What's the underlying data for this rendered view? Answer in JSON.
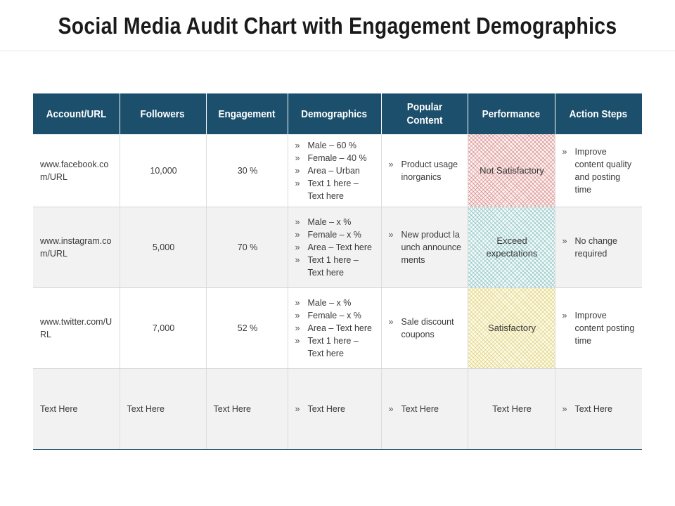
{
  "title": "Social Media Audit Chart with Engagement Demographics",
  "headers": [
    "Account/URL",
    "Followers",
    "Engagement",
    "Demographics",
    "Popular Content",
    "Performance",
    "Action Steps"
  ],
  "rows": [
    {
      "account": "www.facebook.com/URL",
      "followers": "10,000",
      "engagement": "30 %",
      "demographics": [
        "Male – 60 %",
        "Female – 40 %",
        "Area – Urban",
        "Text 1 here – Text here"
      ],
      "content": [
        "Product usage inorganics"
      ],
      "performance": "Not Satisfactory",
      "actions": [
        "Improve content quality and posting time"
      ]
    },
    {
      "account": "www.instagram.com/URL",
      "followers": "5,000",
      "engagement": "70 %",
      "demographics": [
        "Male – x %",
        "Female – x %",
        "Area – Text here",
        "Text 1 here – Text here"
      ],
      "content": [
        "New product launch announcements"
      ],
      "performance": "Exceed expectations",
      "actions": [
        "No change required"
      ]
    },
    {
      "account": "www.twitter.com/URL",
      "followers": "7,000",
      "engagement": "52 %",
      "demographics": [
        "Male – x %",
        "Female – x %",
        "Area – Text here",
        "Text 1 here – Text here"
      ],
      "content": [
        "Sale discount coupons"
      ],
      "performance": "Satisfactory",
      "actions": [
        "Improve content posting time"
      ]
    },
    {
      "account": "Text Here",
      "followers": "Text Here",
      "engagement": "Text Here",
      "demographics": [
        "Text Here"
      ],
      "content": [
        "Text Here"
      ],
      "performance": "Text Here",
      "actions": [
        "Text Here"
      ]
    }
  ],
  "colors": {
    "header_bg": "#1b4f6b",
    "performance_not_satisfactory": "#cd5c5c",
    "performance_exceed": "#5faaaa",
    "performance_satisfactory": "#d7c350"
  }
}
